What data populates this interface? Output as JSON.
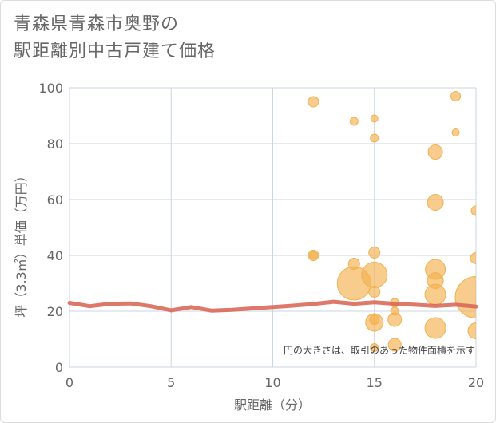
{
  "chart_data": {
    "type": "scatter",
    "title_line1": "青森県青森市奥野の",
    "title_line2": "駅距離別中古戸建て価格",
    "xlabel": "駅距離（分）",
    "ylabel": "坪（3.3㎡）単価（万円）",
    "xlim": [
      0,
      20
    ],
    "ylim": [
      0,
      100
    ],
    "xticks": [
      0,
      5,
      10,
      15,
      20
    ],
    "yticks": [
      0,
      20,
      40,
      60,
      80,
      100
    ],
    "grid": true,
    "note": "円の大きさは、取引のあった物件面積を示す",
    "colors": {
      "bubble": "#f2b14f",
      "trend": "#d9695a",
      "grid": "#c9d6df",
      "text": "#666666"
    },
    "points": [
      {
        "x": 12,
        "y": 95,
        "size": 1.3
      },
      {
        "x": 12,
        "y": 40,
        "size": 1.3
      },
      {
        "x": 12,
        "y": 40,
        "size": 1.0
      },
      {
        "x": 14,
        "y": 88,
        "size": 1.0
      },
      {
        "x": 14,
        "y": 37,
        "size": 1.4
      },
      {
        "x": 14,
        "y": 30,
        "size": 4.2
      },
      {
        "x": 15,
        "y": 89,
        "size": 0.9
      },
      {
        "x": 15,
        "y": 82,
        "size": 1.0
      },
      {
        "x": 15,
        "y": 41,
        "size": 1.4
      },
      {
        "x": 15,
        "y": 33,
        "size": 3.2
      },
      {
        "x": 15,
        "y": 27,
        "size": 1.4
      },
      {
        "x": 15,
        "y": 17,
        "size": 1.2
      },
      {
        "x": 15,
        "y": 16,
        "size": 2.2
      },
      {
        "x": 15,
        "y": 7,
        "size": 1.0
      },
      {
        "x": 16,
        "y": 23,
        "size": 1.1
      },
      {
        "x": 16,
        "y": 20,
        "size": 1.0
      },
      {
        "x": 16,
        "y": 17,
        "size": 1.7
      },
      {
        "x": 16,
        "y": 8,
        "size": 1.6
      },
      {
        "x": 18,
        "y": 77,
        "size": 1.8
      },
      {
        "x": 18,
        "y": 59,
        "size": 2.0
      },
      {
        "x": 18,
        "y": 35,
        "size": 2.5
      },
      {
        "x": 18,
        "y": 31,
        "size": 2.0
      },
      {
        "x": 18,
        "y": 26,
        "size": 2.6
      },
      {
        "x": 18,
        "y": 14,
        "size": 2.6
      },
      {
        "x": 19,
        "y": 97,
        "size": 1.2
      },
      {
        "x": 19,
        "y": 84,
        "size": 0.9
      },
      {
        "x": 20,
        "y": 56,
        "size": 1.2
      },
      {
        "x": 20,
        "y": 39,
        "size": 1.4
      },
      {
        "x": 20,
        "y": 25,
        "size": 5.2
      },
      {
        "x": 20,
        "y": 13,
        "size": 2.0
      }
    ],
    "trend": {
      "x": [
        0,
        1,
        2,
        3,
        4,
        5,
        6,
        7,
        8,
        9,
        10,
        11,
        12,
        13,
        14,
        15,
        16,
        17,
        18,
        19,
        20
      ],
      "y": [
        23,
        21.8,
        22.7,
        22.8,
        21.8,
        20.3,
        21.5,
        20.2,
        20.5,
        21,
        21.5,
        22,
        22.6,
        23.4,
        22.7,
        23.2,
        22.7,
        22.3,
        21.9,
        22.3,
        21.7
      ]
    }
  }
}
